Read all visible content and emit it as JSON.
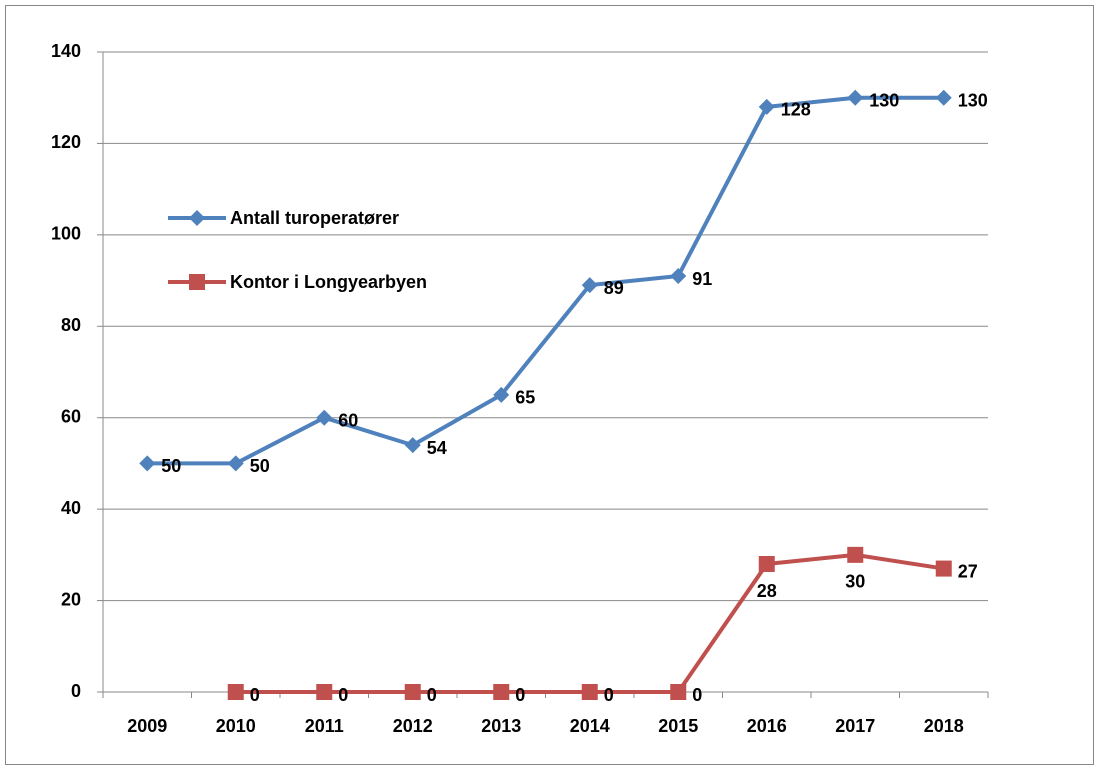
{
  "chart_data": {
    "type": "line",
    "categories": [
      "2009",
      "2010",
      "2011",
      "2012",
      "2013",
      "2014",
      "2015",
      "2016",
      "2017",
      "2018"
    ],
    "series": [
      {
        "name": "Antall turoperatører",
        "color": "#4f81bd",
        "values": [
          50,
          50,
          60,
          54,
          65,
          89,
          91,
          128,
          130,
          130
        ]
      },
      {
        "name": "Kontor i Longyearbyen",
        "color": "#c0504d",
        "values": [
          null,
          0,
          0,
          0,
          0,
          0,
          0,
          28,
          30,
          27
        ]
      }
    ],
    "ylim": [
      0,
      140
    ],
    "yticks": [
      0,
      20,
      40,
      60,
      80,
      100,
      120,
      140
    ],
    "grid": true,
    "legend": "left"
  }
}
